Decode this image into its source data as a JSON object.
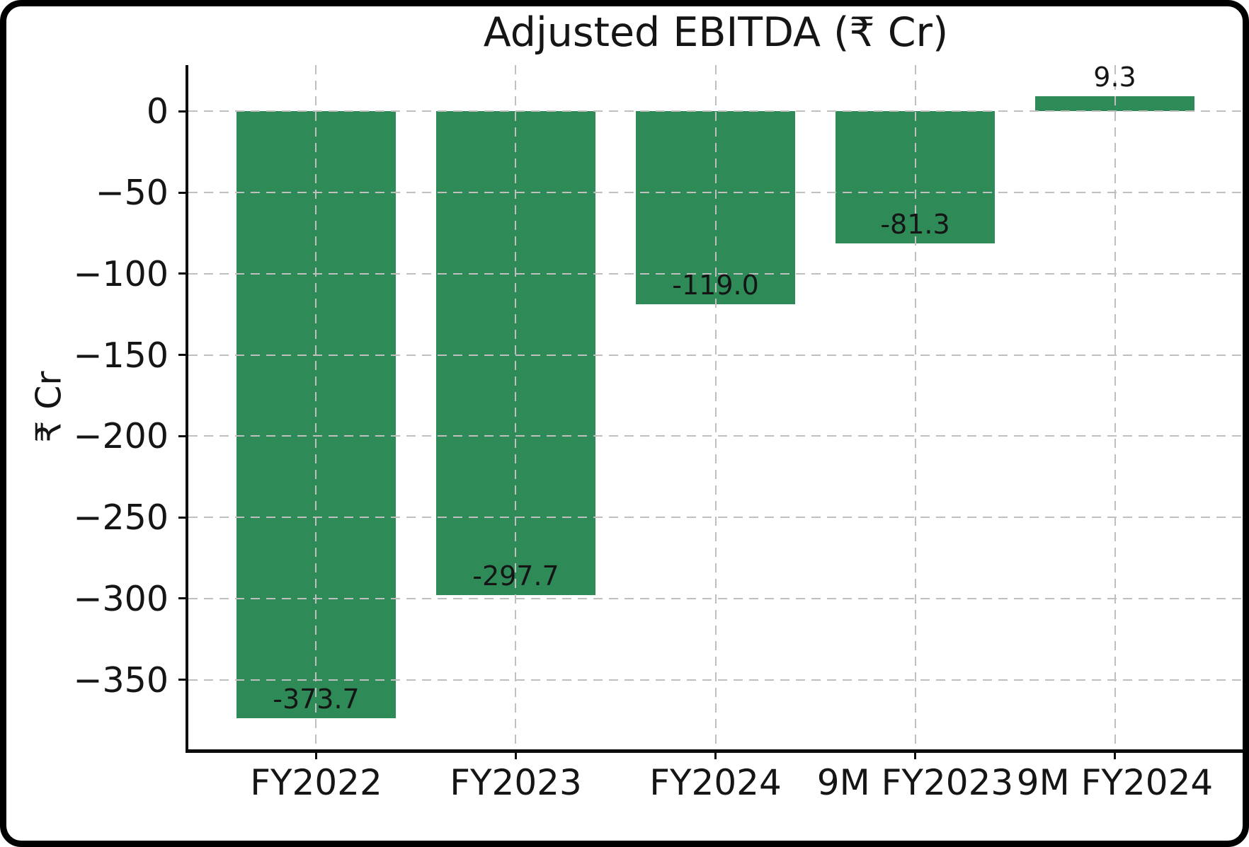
{
  "figure": {
    "background_color": "#ffffff",
    "border_color": "#000000"
  },
  "chart_data": {
    "type": "bar",
    "title": "Adjusted EBITDA (₹ Cr)",
    "ylabel": "₹ Cr",
    "xlabel": "",
    "categories": [
      "FY2022",
      "FY2023",
      "FY2024",
      "9M FY2023",
      "9M FY2024"
    ],
    "values": [
      -373.7,
      -297.7,
      -119.0,
      -81.3,
      9.3
    ],
    "value_labels": [
      "-373.7",
      "-297.7",
      "-119.0",
      "-81.3",
      "9.3"
    ],
    "yticks": [
      0,
      -50,
      -100,
      -150,
      -200,
      -250,
      -300,
      -350
    ],
    "ytick_labels": [
      "0",
      "−50",
      "−100",
      "−150",
      "−200",
      "−250",
      "−300",
      "−350"
    ],
    "ylim": [
      -392.9,
      28.45
    ],
    "xlim": [
      -0.64,
      4.64
    ],
    "bar_width": 0.8,
    "bar_color": "#2e8b57",
    "grid": true,
    "grid_style": "dashed",
    "grid_color": "#bfbfbf",
    "grid_above_bars": true,
    "spines": [
      "left",
      "bottom",
      "right"
    ],
    "legend": "none",
    "text_color": "#151515"
  }
}
